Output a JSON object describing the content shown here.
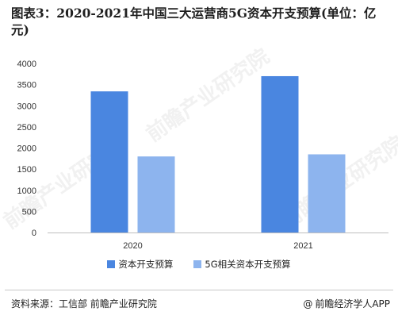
{
  "title": "图表3：2020-2021年中国三大运营商5G资本开支预算(单位：亿元)",
  "watermark_text": "前瞻产业研究院",
  "chart_data": {
    "type": "bar",
    "title": "图表3：2020-2021年中国三大运营商5G资本开支预算(单位：亿元)",
    "categories": [
      "2020",
      "2021"
    ],
    "series": [
      {
        "name": "资本开支预算",
        "values": [
          3340,
          3700
        ],
        "color": "#4a86e0"
      },
      {
        "name": "5G相关资本开支预算",
        "values": [
          1800,
          1850
        ],
        "color": "#8db4ee"
      }
    ],
    "yticks": [
      "0",
      "500",
      "1000",
      "1500",
      "2000",
      "2500",
      "3000",
      "3500",
      "4000"
    ],
    "ylim": [
      0,
      4000
    ],
    "grid": false,
    "legend_position": "bottom"
  },
  "footer": {
    "source": "资料来源：工信部 前瞻产业研究院",
    "brand_at": "@",
    "brand": "前瞻经济学人APP"
  }
}
